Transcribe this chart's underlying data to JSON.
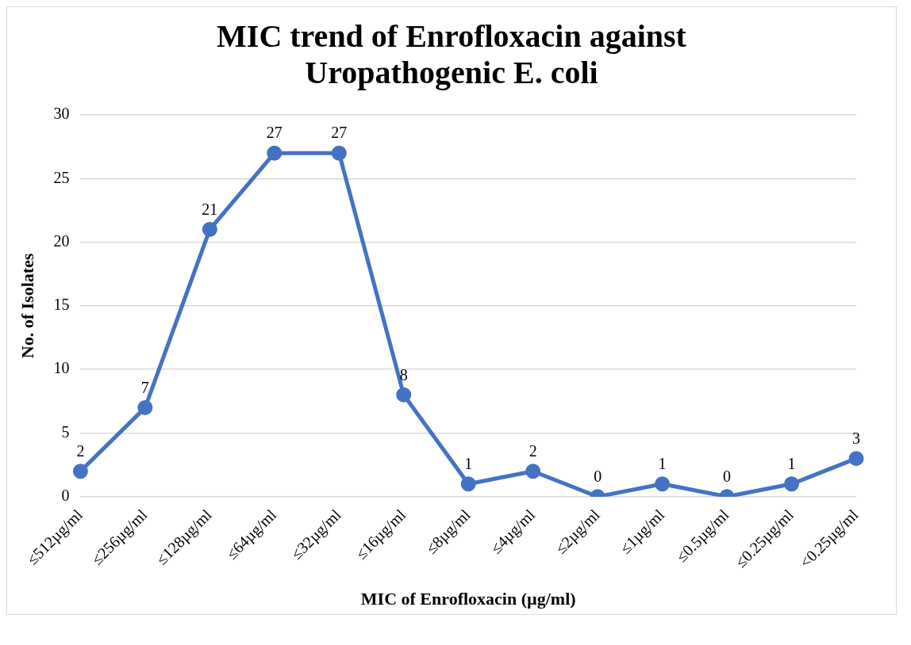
{
  "chart_data": {
    "type": "line",
    "title": "MIC trend of Enrofloxacin against Uropathogenic E. coli",
    "xlabel": "MIC of Enrofloxacin (µg/ml)",
    "ylabel": "No. of Isolates",
    "categories": [
      "≤512µg/ml",
      "≤256µg/ml",
      "≤128µg/ml",
      "≤64µg/ml",
      "≤32µg/ml",
      "≤16µg/ml",
      "≤8µg/ml",
      "≤4µg/ml",
      "≤2µg/ml",
      "≤1µg/ml",
      "≤0.5µg/ml",
      "≤0.25µg/ml",
      "<0.25µg/ml"
    ],
    "series": [
      {
        "color": "#4472c4",
        "values": [
          2,
          7,
          21,
          27,
          27,
          8,
          1,
          2,
          0,
          1,
          0,
          1,
          3
        ]
      }
    ],
    "ylim": [
      0,
      30
    ],
    "yticks": [
      0,
      5,
      10,
      15,
      20,
      25,
      30
    ],
    "grid": "y",
    "legend": false,
    "marker": "circle",
    "line_style": "solid",
    "data_labels": true
  }
}
